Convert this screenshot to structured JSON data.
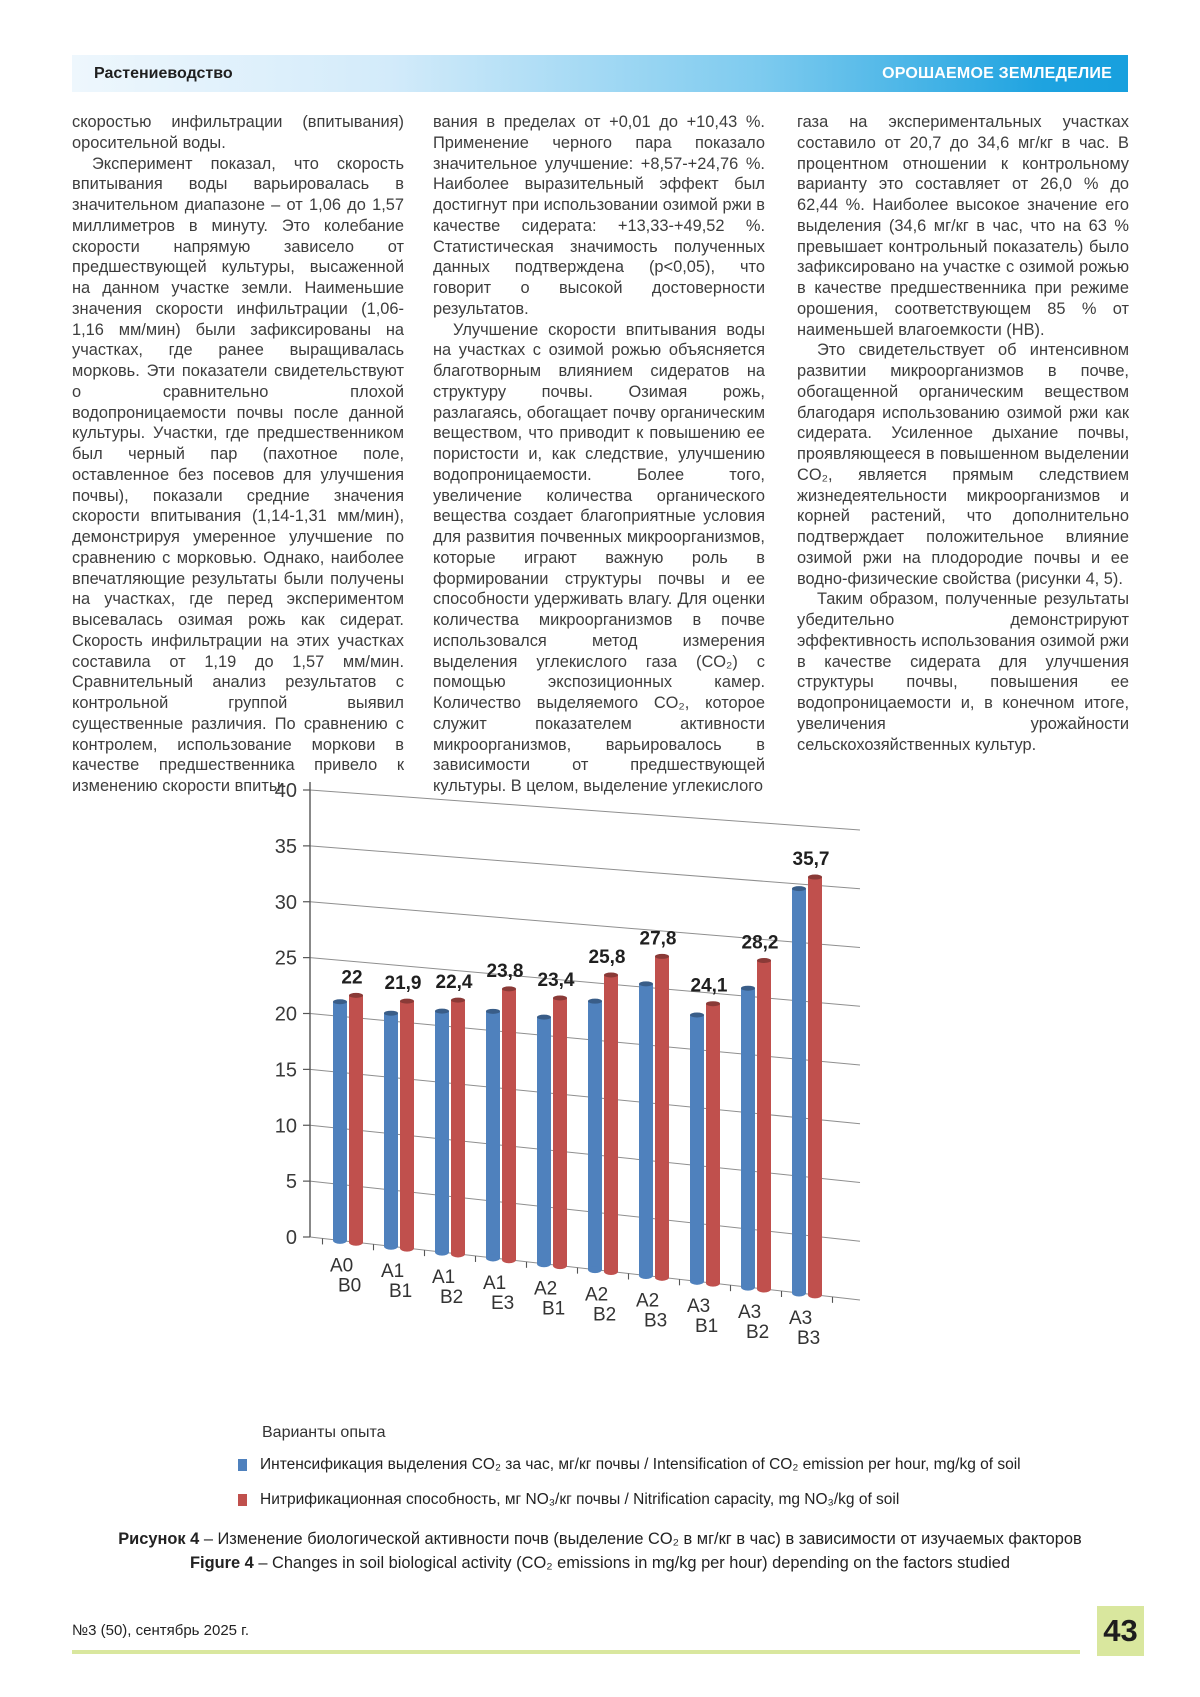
{
  "header": {
    "left": "Растениеводство",
    "right": "ОРОШАЕМОЕ ЗЕМЛЕДЕЛИЕ"
  },
  "columns": {
    "col1": [
      "скоростью инфильтрации (впитывания) оросительной воды.",
      "Эксперимент показал, что скорость впитывания воды варьировалась в значительном диапазоне – от 1,06 до 1,57 миллиметров в минуту. Это колебание скорости напрямую зависело от предшествующей культуры, высаженной на данном участке земли. Наименьшие значения скорости инфильтрации (1,06-1,16 мм/мин) были зафиксированы на участках, где ранее выращивалась морковь. Эти показатели свидетельствуют о сравнительно плохой водопроницаемости почвы после данной культуры. Участки, где предшественником был черный пар (пахотное поле, оставленное без посевов для улучшения почвы), показали средние значения скорости впитывания (1,14-1,31 мм/мин), демонстрируя умеренное улучшение по сравнению с морковью. Однако, наиболее впечатляющие результаты были получены на участках, где перед экспериментом высевалась озимая рожь как сидерат. Скорость инфильтрации на этих участках составила от 1,19 до 1,57 мм/мин. Сравнительный анализ результатов с контрольной группой выявил существенные различия. По сравнению с контролем, использование моркови в качестве предшественника привело к изменению скорости впиты-"
    ],
    "col2": [
      "вания в пределах от +0,01 до +10,43 %. Применение черного пара показало значительное улучшение: +8,57-+24,76 %. Наиболее выразительный эффект был достигнут при использовании озимой ржи в качестве сидерата: +13,33-+49,52 %. Статистическая значимость полученных данных подтверждена (p<0,05), что говорит о высокой достоверности результатов.",
      "Улучшение скорости впитывания воды на участках с озимой рожью объясняется благотворным влиянием сидератов на структуру почвы. Озимая рожь, разлагаясь, обогащает почву органическим веществом, что приводит к повышению ее пористости и, как следствие, улучшению водопроницаемости. Более того, увеличение количества органического вещества создает благоприятные условия для развития почвенных микроорганизмов, которые играют важную роль в формировании структуры почвы и ее способности удерживать влагу. Для оценки количества микроорганизмов в почве использовался метод измерения выделения углекислого газа (CO₂) с помощью экспозиционных камер. Количество выделяемого CO₂, которое служит показателем активности микроорганизмов, варьировалось в зависимости от предшествующей культуры. В целом, выделение углекислого"
    ],
    "col3": [
      "газа на экспериментальных участках составило от 20,7 до 34,6 мг/кг в час. В процентном отношении к контрольному варианту это составляет от 26,0 % до 62,44 %. Наиболее высокое значение его выделения (34,6 мг/кг в час, что на 63 % превышает контрольный показатель) было зафиксировано на участке с озимой рожью в качестве предшественника при режиме орошения, соответствующем 85 % от наименьшей влагоемкости (НВ).",
      "Это свидетельствует об интенсивном развитии микроорганизмов в почве, обогащенной органическим веществом благодаря использованию озимой ржи как сидерата. Усиленное дыхание почвы, проявляющееся в повышенном выделении CO₂, является прямым следствием жизнедеятельности микроорганизмов и корней растений, что дополнительно подтверждает положительное влияние озимой ржи на плодородие почвы и ее водно-физические свойства (рисунки 4, 5).",
      "Таким образом, полученные результаты убедительно демонстрируют эффективность использования озимой ржи в качестве сидерата для улучшения структуры почвы, повышения ее водопроницаемости и, в конечном итоге, увеличения урожайности сельскохозяйственных культур."
    ]
  },
  "chart_data": {
    "type": "bar",
    "style": "3d-clustered-column",
    "categories": [
      "А0 В0",
      "А1 В1",
      "А1 В2",
      "А1 Е3",
      "А2 В1",
      "А2 В2",
      "А2 В3",
      "А3 В1",
      "А3 В2",
      "А3 В3"
    ],
    "series": [
      {
        "name": "Интенсификация выделения CO₂ за час, мг/кг почвы / Intensification of CO₂ emission per hour, mg/kg of soil",
        "color": "#4f81bd",
        "values": [
          21.3,
          20.7,
          21.3,
          21.7,
          21.6,
          23.4,
          25.3,
          23.0,
          25.7,
          34.6
        ]
      },
      {
        "name": "Нитрификационная способность, мг NO₃/кг почвы / Nitrification capacity, mg NO₃/kg of soil",
        "color": "#c0504d",
        "values": [
          22,
          21.9,
          22.4,
          23.8,
          23.4,
          25.8,
          27.8,
          24.1,
          28.2,
          35.7
        ],
        "labels": [
          "22",
          "21,9",
          "22,4",
          "23,8",
          "23,4",
          "25,8",
          "27,8",
          "24,1",
          "28,2",
          "35,7"
        ]
      }
    ],
    "xlabel": "Варианты опыта",
    "ylabel": "",
    "ylim": [
      0,
      40
    ],
    "yticks": [
      0,
      5,
      10,
      15,
      20,
      25,
      30,
      35,
      40
    ],
    "grid": true,
    "legend_position": "bottom-left"
  },
  "caption": {
    "ru_bold": "Рисунок 4",
    "ru_rest": " – Изменение биологической активности почв (выделение CO₂ в мг/кг в час) в зависимости от изучаемых факторов",
    "en_bold": "Figure 4",
    "en_rest": " – Changes in soil biological activity (CO₂ emissions in mg/kg per hour) depending on the factors studied"
  },
  "footer": {
    "issue": "№3 (50), сентябрь 2025 г.",
    "page_number": "43"
  }
}
